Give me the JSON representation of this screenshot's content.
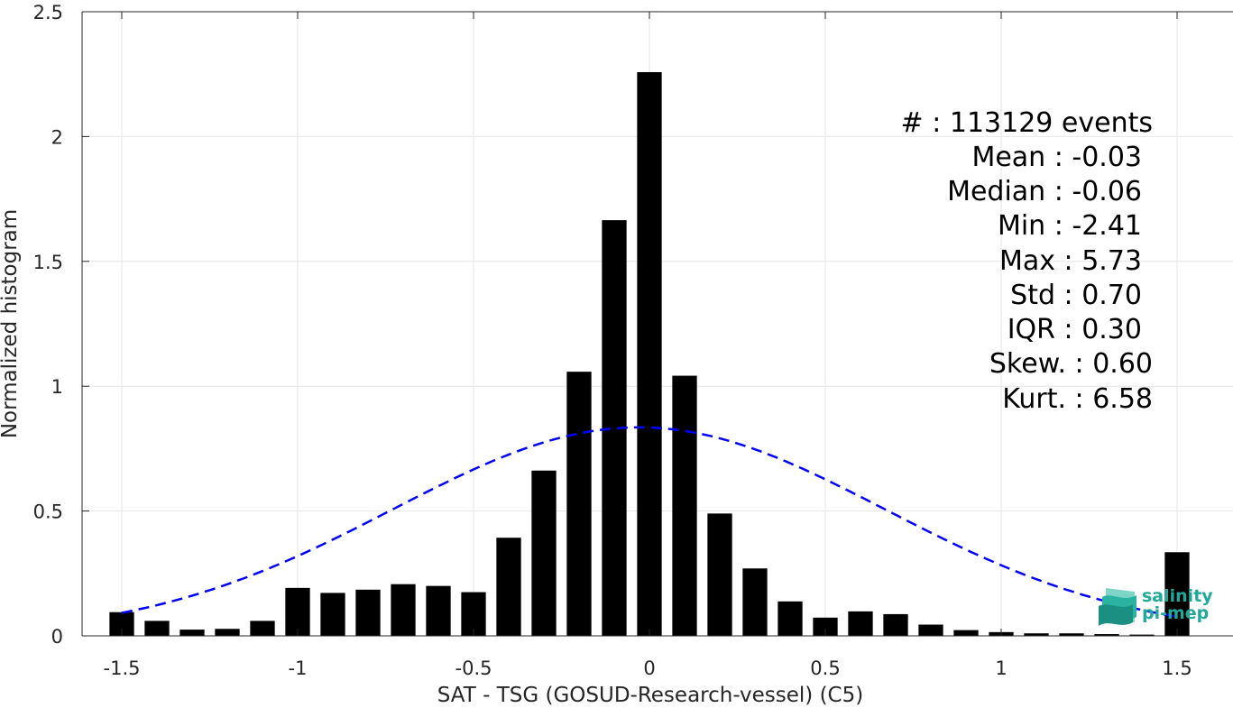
{
  "chart_data": {
    "type": "bar",
    "xlabel": "SAT - TSG (GOSUD-Research-vessel) (C5)",
    "ylabel": "Normalized histogram",
    "xlim": [
      -1.55,
      1.55
    ],
    "ylim": [
      0,
      2.5
    ],
    "xticks": [
      -1.5,
      -1,
      -0.5,
      0,
      0.5,
      1,
      1.5
    ],
    "xtick_labels": [
      "-1.5",
      "-1",
      "-0.5",
      "0",
      "0.5",
      "1",
      "1.5"
    ],
    "yticks": [
      0,
      0.5,
      1,
      1.5,
      2,
      2.5
    ],
    "ytick_labels": [
      "0",
      "0.5",
      "1",
      "1.5",
      "2",
      "2.5"
    ],
    "grid": true,
    "bar_width": 0.07,
    "bar_color": "#000000",
    "x": [
      -1.5,
      -1.4,
      -1.3,
      -1.2,
      -1.1,
      -1.0,
      -0.9,
      -0.8,
      -0.7,
      -0.6,
      -0.5,
      -0.4,
      -0.3,
      -0.2,
      -0.1,
      0.0,
      0.1,
      0.2,
      0.3,
      0.4,
      0.5,
      0.6,
      0.7,
      0.8,
      0.9,
      1.0,
      1.1,
      1.2,
      1.3,
      1.4,
      1.5
    ],
    "values": [
      0.095,
      0.06,
      0.025,
      0.028,
      0.06,
      0.192,
      0.172,
      0.185,
      0.207,
      0.2,
      0.175,
      0.393,
      0.662,
      1.058,
      1.665,
      2.258,
      1.042,
      0.49,
      0.27,
      0.138,
      0.073,
      0.098,
      0.087,
      0.045,
      0.023,
      0.015,
      0.01,
      0.01,
      0.007,
      0.005,
      0.335
    ],
    "fit": {
      "type": "gaussian",
      "mean": -0.03,
      "std": 0.7,
      "peak": 0.835,
      "x_range": [
        -1.5,
        1.5
      ],
      "color": "#0000ff",
      "style": "dashed"
    },
    "stats": [
      "#  : 113129 events",
      "Mean : -0.03",
      "Median : -0.06",
      "Min : -2.41",
      "Max : 5.73",
      "Std : 0.70",
      "IQR : 0.30",
      "Skew. : 0.60",
      "Kurt. : 6.58"
    ]
  },
  "logo": {
    "line1": "salinity",
    "line2": "pi-mep",
    "color": "#1fa99a"
  }
}
